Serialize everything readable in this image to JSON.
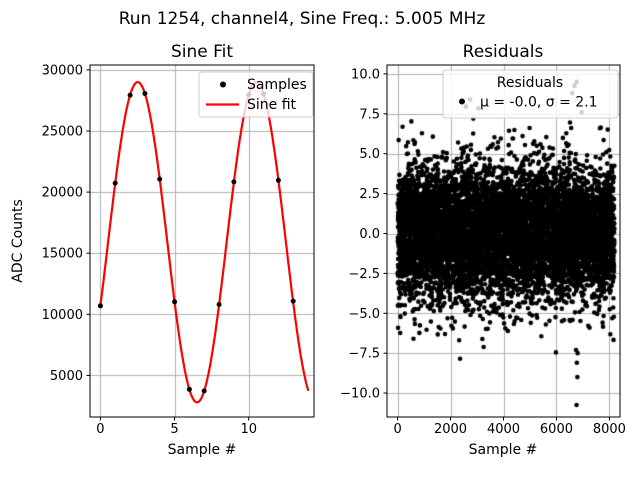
{
  "figure": {
    "suptitle": "Run 1254, channel4, Sine Freq.: 5.005 MHz",
    "background": "#ffffff",
    "grid_color": "#b0b0b0",
    "spine_color": "#000000",
    "text_color": "#000000",
    "legend_face": "rgba(255,255,255,0.8)",
    "legend_edge": "#cccccc"
  },
  "chart_data": [
    {
      "type": "line+scatter",
      "title": "Sine Fit",
      "xlabel": "Sample #",
      "ylabel": "ADC Counts",
      "xlim": [
        -0.7,
        14.4
      ],
      "ylim": [
        1600,
        30400
      ],
      "grid": true,
      "xticks": [
        {
          "v": 0,
          "label": "0"
        },
        {
          "v": 5,
          "label": "5"
        },
        {
          "v": 10,
          "label": "10"
        }
      ],
      "yticks": [
        {
          "v": 5000,
          "label": "5000"
        },
        {
          "v": 10000,
          "label": "10000"
        },
        {
          "v": 15000,
          "label": "15000"
        },
        {
          "v": 20000,
          "label": "20000"
        },
        {
          "v": 25000,
          "label": "25000"
        },
        {
          "v": 30000,
          "label": "30000"
        }
      ],
      "legend": {
        "entries": [
          {
            "label": "Samples",
            "marker": "dot",
            "color": "#000000"
          },
          {
            "label": "Sine fit",
            "marker": "line",
            "color": "#ff0000"
          }
        ]
      },
      "samples": {
        "marker_color": "#000000",
        "x": [
          0,
          1,
          2,
          3,
          4,
          5,
          6,
          7,
          8,
          9,
          10,
          11,
          12,
          13
        ],
        "y": [
          10702,
          20737,
          27931,
          28068,
          21064,
          11024,
          3863,
          3733,
          10802,
          20832,
          27971,
          28028,
          20965,
          11084
        ]
      },
      "sine_fit": {
        "color": "#ff0000",
        "offset": 15900,
        "amplitude": 13100,
        "period_samples": 7.992,
        "phase_rad": -0.408,
        "x_range": [
          0,
          14
        ]
      }
    },
    {
      "type": "scatter",
      "title": "Residuals",
      "xlabel": "Sample #",
      "ylabel": "",
      "xlim": [
        -400,
        8400
      ],
      "ylim": [
        -11.5,
        10.56
      ],
      "grid": true,
      "xticks": [
        {
          "v": 0,
          "label": "0"
        },
        {
          "v": 2000,
          "label": "2000"
        },
        {
          "v": 4000,
          "label": "4000"
        },
        {
          "v": 6000,
          "label": "6000"
        },
        {
          "v": 8000,
          "label": "8000"
        }
      ],
      "yticks": [
        {
          "v": 10.0,
          "label": "10.0"
        },
        {
          "v": 7.5,
          "label": "7.5"
        },
        {
          "v": 5.0,
          "label": "5.0"
        },
        {
          "v": 2.5,
          "label": "2.5"
        },
        {
          "v": 0.0,
          "label": "0.0"
        },
        {
          "v": -2.5,
          "label": "−2.5"
        },
        {
          "v": -5.0,
          "label": "−5.0"
        },
        {
          "v": -7.5,
          "label": "−7.5"
        },
        {
          "v": -10.0,
          "label": "−10.0"
        }
      ],
      "legend": {
        "title": "Residuals",
        "entries": [
          {
            "label": "μ = -0.0, σ = 2.1",
            "marker": "dot",
            "color": "#000000"
          }
        ]
      },
      "stats": {
        "mu": "-0.0",
        "sigma": "2.1",
        "n_points": 8000
      },
      "point_color": "#000000",
      "generator": {
        "seed": 42,
        "x_min": 0,
        "x_max": 8191,
        "sigma": 2.1,
        "clip_abs": 7.3
      },
      "outliers": [
        [
          2580,
          7.95
        ],
        [
          2740,
          8.4
        ],
        [
          3050,
          7.85
        ],
        [
          2860,
          7.2
        ],
        [
          6600,
          8.8
        ],
        [
          6680,
          9.25
        ],
        [
          6760,
          9.5
        ],
        [
          6950,
          7.6
        ],
        [
          600,
          -6.6
        ],
        [
          2360,
          -7.85
        ],
        [
          5980,
          -7.45
        ],
        [
          4420,
          -5.5
        ],
        [
          5030,
          -5.6
        ],
        [
          5600,
          -5.7
        ],
        [
          7250,
          -5.9
        ],
        [
          6740,
          -7.3
        ],
        [
          6800,
          -7.5
        ],
        [
          6770,
          -8.1
        ],
        [
          6790,
          -9.0
        ],
        [
          6760,
          -10.75
        ]
      ]
    }
  ]
}
